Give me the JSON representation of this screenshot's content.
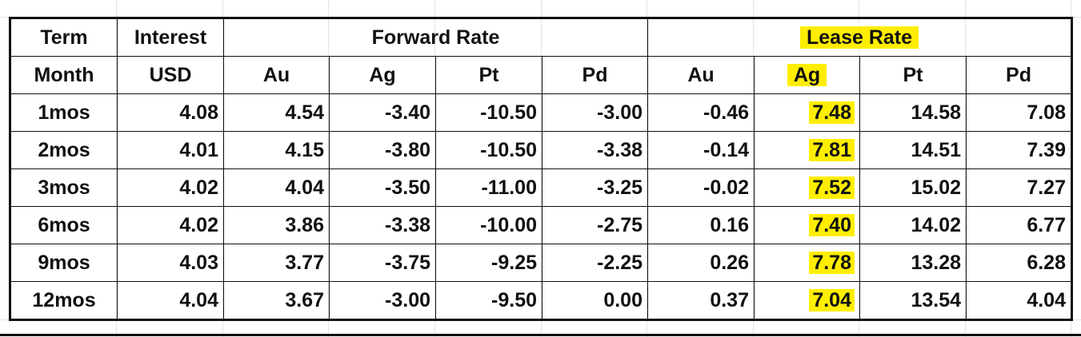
{
  "colors": {
    "highlight": "#ffee00",
    "border": "#111111",
    "gridline": "#e3e3e3"
  },
  "header1": {
    "term": "Term",
    "interest": "Interest",
    "forward": "Forward Rate",
    "lease": "Lease Rate"
  },
  "header2": [
    "Month",
    "USD",
    "Au",
    "Ag",
    "Pt",
    "Pd",
    "Au",
    "Ag",
    "Pt",
    "Pd"
  ],
  "rows": [
    [
      "1mos",
      "4.08",
      "4.54",
      "-3.40",
      "-10.50",
      "-3.00",
      "-0.46",
      "7.48",
      "14.58",
      "7.08"
    ],
    [
      "2mos",
      "4.01",
      "4.15",
      "-3.80",
      "-10.50",
      "-3.38",
      "-0.14",
      "7.81",
      "14.51",
      "7.39"
    ],
    [
      "3mos",
      "4.02",
      "4.04",
      "-3.50",
      "-11.00",
      "-3.25",
      "-0.02",
      "7.52",
      "15.02",
      "7.27"
    ],
    [
      "6mos",
      "4.02",
      "3.86",
      "-3.38",
      "-10.00",
      "-2.75",
      "0.16",
      "7.40",
      "14.02",
      "6.77"
    ],
    [
      "9mos",
      "4.03",
      "3.77",
      "-3.75",
      "-9.25",
      "-2.25",
      "0.26",
      "7.78",
      "13.28",
      "6.28"
    ],
    [
      "12mos",
      "4.04",
      "3.67",
      "-3.00",
      "-9.50",
      "0.00",
      "0.37",
      "7.04",
      "13.54",
      "4.04"
    ]
  ]
}
